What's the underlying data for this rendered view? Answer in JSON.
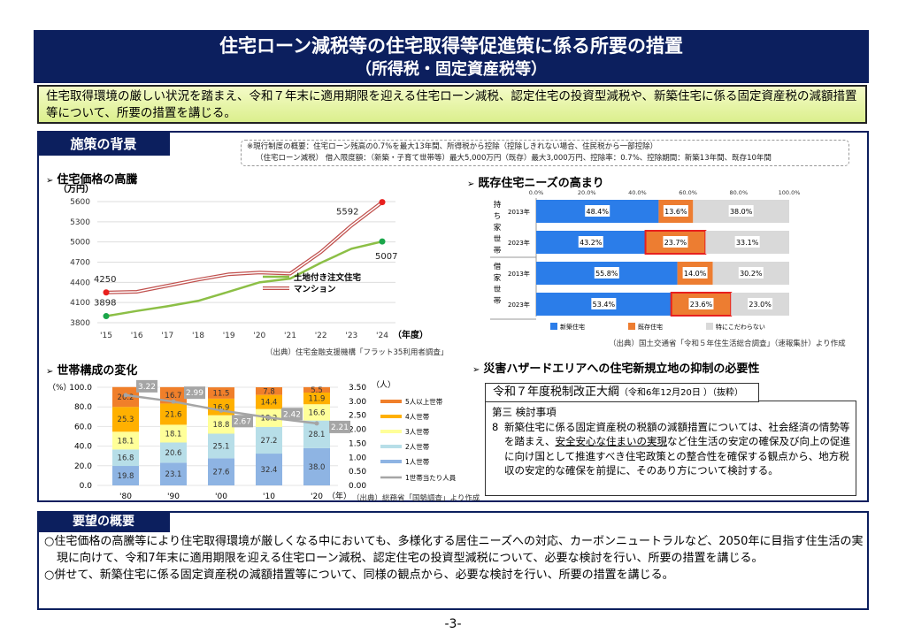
{
  "header": {
    "title_line1": "住宅ローン減税等の住宅取得等促進策に係る所要の措置",
    "title_line2": "（所得税・固定資産税等）"
  },
  "summary": "住宅取得環境の厳しい状況を踏まえ、令和７年末に適用期限を迎える住宅ローン減税、認定住宅の投資型減税や、新築住宅に係る固定資産税の減額措置等について、所要の措置を講じる。",
  "background": {
    "tab_label": "施策の背景",
    "note_line1": "※現行制度の概要：住宅ローン残高の0.7%を最大13年間、所得税から控除（控除しきれない場合、住民税から一部控除）",
    "note_line2": "（住宅ローン減税） 借入限度額：（新築・子育て世帯等）最大5,000万円（既存）最大3,000万円、控除率：0.7%、控除期間：新築13年間、既存10年間",
    "price_heading": "住宅価格の高騰",
    "price_source": "（出典）住宅金融支援機構「フラット35利用者調査」",
    "needs_heading": "既存住宅ニーズの高まり",
    "needs_source": "（出典）国土交通省「令和５年住生活総合調査」（速報集計）より作成",
    "household_heading": "世帯構成の変化",
    "household_source": "（出典）総務省「国勢調査」より作成",
    "hazard_heading": "災害ハザードエリアへの住宅新規立地の抑制の必要性",
    "arrow_glyph": "➢"
  },
  "tax_outline": {
    "title": "令和７年度税制改正大綱",
    "title_note": "（令和6年12月20日 ）（抜粋）",
    "section": "第三 検討事項",
    "item_num": "8",
    "text_before": "新築住宅に係る固定資産税の税額の減額措置については、社会経済の情勢等を踏まえ、",
    "text_underlined": "安全安心な住まいの実現",
    "text_after": "など住生活の安定の確保及び向上の促進に向け国として推進すべき住宅政策との整合性を確保する観点から、地方税収の安定的な確保を前提に、そのあり方について検討する。"
  },
  "request": {
    "tab_label": "要望の概要",
    "items": [
      "○住宅価格の高騰等により住宅取得環境が厳しくなる中においても、多様化する居住ニーズへの対応、カーボンニュートラルなど、2050年に目指す住生活の実現に向けて、令和7年末に適用期限を迎える住宅ローン減税、認定住宅の投資型減税について、必要な検討を行い、所要の措置を講じる。",
      "○併せて、新築住宅に係る固定資産税の減額措置等について、同様の観点から、必要な検討を行い、所要の措置を講じる。"
    ]
  },
  "page_number": "-3-",
  "chart_data": [
    {
      "id": "price",
      "type": "line",
      "title": "住宅価格の高騰",
      "ylabel": "（万円）",
      "xlabel": "（年度）",
      "categories": [
        "'15",
        "'16",
        "'17",
        "'18",
        "'19",
        "'20",
        "'21",
        "'22",
        "'23",
        "'24"
      ],
      "ylim": [
        3800,
        5600
      ],
      "yticks": [
        3800,
        4100,
        4400,
        4700,
        5000,
        5300,
        5600
      ],
      "grid": true,
      "legend_position": "right-center",
      "series": [
        {
          "name": "土地付き注文住宅",
          "color": "#8cbf46",
          "values": [
            3898,
            3975,
            4045,
            4125,
            4260,
            4400,
            4455,
            4690,
            4900,
            5007
          ],
          "labels": {
            "0": "3898",
            "9": "5007"
          },
          "marker_color": "#1aa64a"
        },
        {
          "name": "マンション",
          "color": "#c0504d",
          "values": [
            4250,
            4260,
            4350,
            4440,
            4520,
            4545,
            4530,
            4850,
            5245,
            5592
          ],
          "labels": {
            "0": "4250",
            "9": "5592"
          },
          "marker_color": "#e8201e"
        }
      ]
    },
    {
      "id": "needs",
      "type": "bar",
      "orientation": "horizontal-stacked-100",
      "title": "既存住宅ニーズの高まり",
      "xticks": [
        "0.0%",
        "20.0%",
        "40.0%",
        "60.0%",
        "80.0%",
        "100.0%"
      ],
      "xlim": [
        0,
        100
      ],
      "groups": [
        {
          "label": "持ち家世帯",
          "rows": [
            {
              "year": "2013年",
              "values": [
                48.4,
                13.6,
                38.0
              ],
              "highlight": false
            },
            {
              "year": "2023年",
              "values": [
                43.2,
                23.7,
                33.1
              ],
              "highlight": true
            }
          ]
        },
        {
          "label": "借家世帯",
          "rows": [
            {
              "year": "2013年",
              "values": [
                55.8,
                14.0,
                30.2
              ],
              "highlight": false
            },
            {
              "year": "2023年",
              "values": [
                53.4,
                23.6,
                23.0
              ],
              "highlight": true
            }
          ]
        }
      ],
      "series": [
        {
          "name": "新築住宅",
          "color": "#2b7de9"
        },
        {
          "name": "既存住宅",
          "color": "#ed7d31"
        },
        {
          "name": "特にこだわらない",
          "color": "#d9d9d9"
        }
      ],
      "highlight_color": "#e8201e",
      "legend_position": "bottom"
    },
    {
      "id": "household",
      "type": "bar",
      "orientation": "vertical-stacked",
      "title": "世帯構成の変化",
      "ylabel": "（%）",
      "y2label": "（人）",
      "xlabel": "（年）",
      "categories": [
        "'80",
        "'90",
        "'00",
        "'10",
        "'20"
      ],
      "ylim": [
        0,
        100
      ],
      "yticks": [
        "0.0",
        "20.0",
        "40.0",
        "60.0",
        "80.0",
        "100.0"
      ],
      "y2lim": [
        0,
        3.5
      ],
      "y2ticks": [
        "0.00",
        "0.50",
        "1.00",
        "1.50",
        "2.00",
        "2.50",
        "3.00",
        "3.50"
      ],
      "series": [
        {
          "name": "1人世帯",
          "color": "#8eb4e3",
          "values": [
            19.8,
            23.1,
            27.6,
            32.4,
            38.0
          ]
        },
        {
          "name": "2人世帯",
          "color": "#b7dee8",
          "values": [
            16.8,
            20.6,
            25.1,
            27.2,
            28.1
          ]
        },
        {
          "name": "3人世帯",
          "color": "#ffff99",
          "values": [
            18.1,
            18.1,
            18.8,
            18.2,
            16.6
          ]
        },
        {
          "name": "4人世帯",
          "color": "#ffb000",
          "values": [
            25.3,
            21.6,
            16.9,
            14.4,
            11.9
          ]
        },
        {
          "name": "5人以上世帯",
          "color": "#f07f2a",
          "values": [
            20.2,
            16.7,
            11.5,
            7.8,
            5.5
          ]
        }
      ],
      "line_series": {
        "name": "1世帯当たり人員",
        "color": "#a5a5a5",
        "values": [
          3.22,
          2.99,
          2.67,
          2.42,
          2.21
        ]
      },
      "legend_position": "right"
    }
  ]
}
